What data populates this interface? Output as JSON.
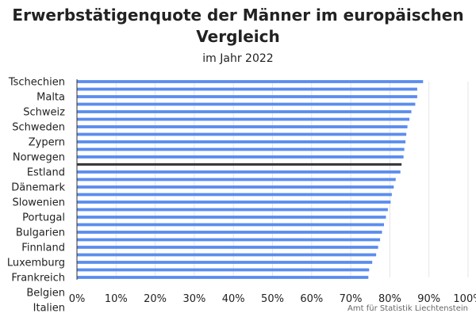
{
  "chart_data": {
    "type": "bar",
    "orientation": "horizontal",
    "title": "Erwerbstätigenquote der Männer im europäischen Vergleich",
    "subtitle": "im Jahr 2022",
    "source": "Amt für Statistik Liechtenstein",
    "xlim": [
      0,
      100
    ],
    "xticks": [
      "0%",
      "10%",
      "20%",
      "30%",
      "40%",
      "50%",
      "60%",
      "70%",
      "80%",
      "90%",
      "100%"
    ],
    "grid": true,
    "bar_color": "#5b8def",
    "highlight_color": "#3a3a3a",
    "labeled_categories": [
      "Tschechien",
      "Malta",
      "Schweiz",
      "Schweden",
      "Zypern",
      "Norwegen",
      "Estland",
      "Dänemark",
      "Slowenien",
      "Portugal",
      "Bulgarien",
      "Finnland",
      "Luxemburg",
      "Frankreich",
      "Belgien",
      "Italien"
    ],
    "values": [
      88.5,
      87.0,
      87.0,
      86.5,
      85.5,
      85.0,
      84.5,
      84.2,
      84.0,
      83.7,
      83.5,
      83.0,
      82.7,
      81.5,
      81.0,
      80.5,
      80.2,
      79.5,
      79.0,
      78.5,
      78.0,
      77.5,
      77.0,
      76.5,
      75.5,
      74.7,
      74.5
    ],
    "highlight_index": 11
  }
}
